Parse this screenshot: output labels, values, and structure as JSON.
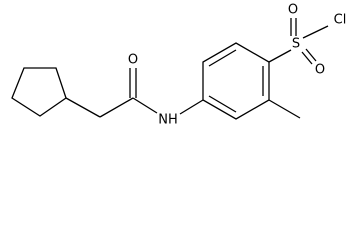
{
  "atoms": {
    "carbonyl_oxygen": "O",
    "amine": "NH",
    "sulfur": "S",
    "sulfonyl_oxygen_top": "O",
    "sulfonyl_oxygen_bottom": "O",
    "chlorine": "Cl"
  }
}
